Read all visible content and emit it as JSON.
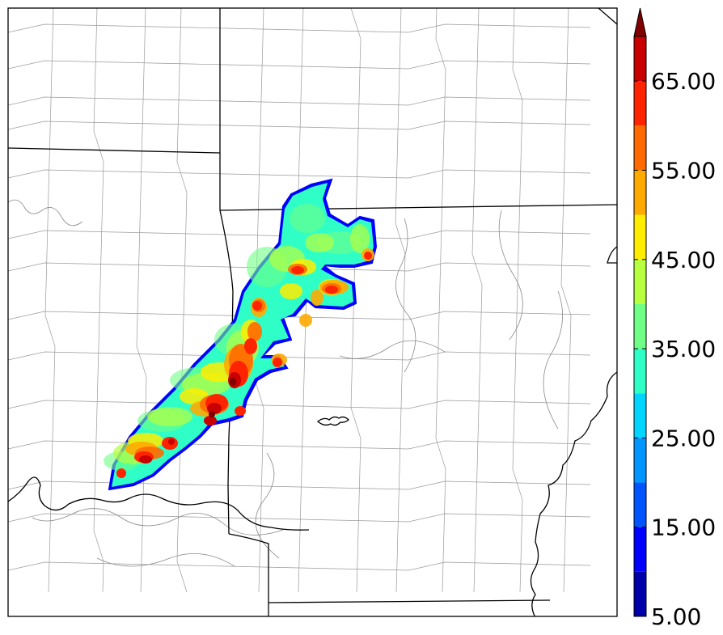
{
  "colorbar": {
    "tick_labels": [
      "5.00",
      "15.00",
      "25.00",
      "35.00",
      "45.00",
      "55.00",
      "65.00"
    ],
    "levels": [
      5,
      10,
      15,
      20,
      25,
      30,
      35,
      40,
      45,
      50,
      55,
      60,
      65,
      70
    ],
    "colors": [
      "#0000aa",
      "#0000ff",
      "#0055ff",
      "#0095ff",
      "#00d5ff",
      "#2fffc7",
      "#6fff86",
      "#b7ff3f",
      "#ffed00",
      "#ffaa00",
      "#ff6a00",
      "#ff2400",
      "#c80000",
      "#800000"
    ],
    "extend": "max"
  },
  "map": {
    "border_color": "#000000",
    "county_line_color": "#9a9a9a",
    "state_line_color": "#000000"
  }
}
